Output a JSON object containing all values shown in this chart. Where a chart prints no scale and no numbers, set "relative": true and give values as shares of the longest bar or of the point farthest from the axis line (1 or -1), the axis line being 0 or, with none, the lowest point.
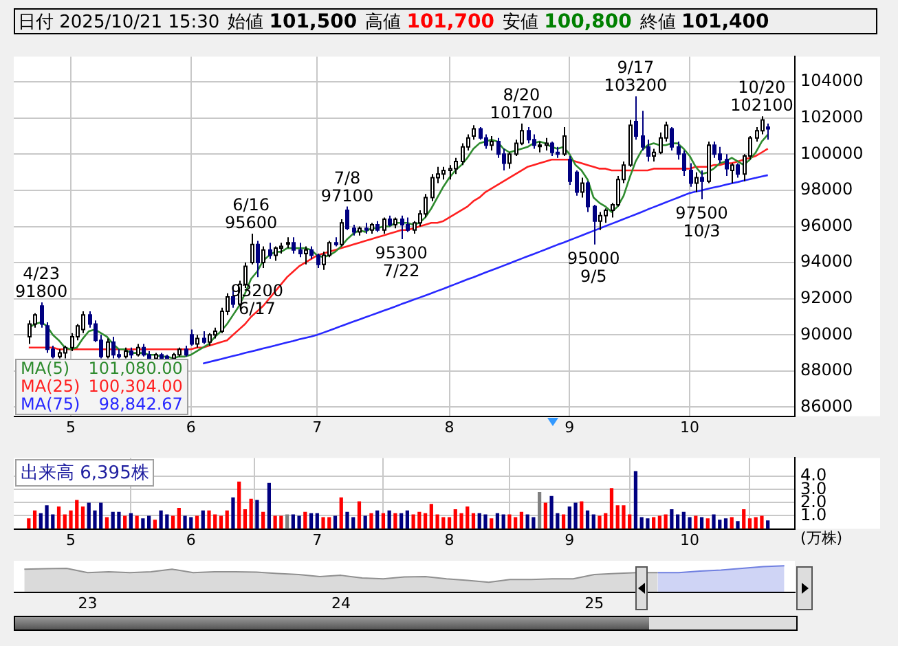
{
  "chart_data": [
    {
      "type": "candlestick",
      "title": "日付 2025/10/21 15:30",
      "annotations": [
        "始値 101,500",
        "高値 101,700",
        "安値 100,800",
        "終値 101,400",
        {
          "text": "4/23\n91800",
          "y": 91800
        },
        {
          "text": "6/16\n95600",
          "y": 95600
        },
        {
          "text": "93200\n6/17",
          "y": 93200
        },
        {
          "text": "7/8\n97100",
          "y": 97100
        },
        {
          "text": "95300\n7/22",
          "y": 95300
        },
        {
          "text": "8/20\n101700",
          "y": 101700
        },
        {
          "text": "95000\n9/5",
          "y": 95000
        },
        {
          "text": "9/17\n103200",
          "y": 103200
        },
        {
          "text": "97500\n10/3",
          "y": 97500
        },
        {
          "text": "10/20\n102100",
          "y": 102100
        }
      ],
      "categories": [
        null,
        null,
        null,
        null,
        null,
        null,
        null,
        "5",
        null,
        null,
        null,
        null,
        null,
        null,
        null,
        null,
        null,
        null,
        null,
        null,
        null,
        null,
        null,
        null,
        null,
        null,
        null,
        "6",
        null,
        null,
        null,
        null,
        null,
        null,
        null,
        null,
        null,
        null,
        null,
        null,
        null,
        null,
        null,
        null,
        null,
        null,
        null,
        null,
        "7",
        null,
        null,
        null,
        null,
        null,
        null,
        null,
        null,
        null,
        null,
        null,
        null,
        null,
        null,
        null,
        null,
        null,
        null,
        null,
        null,
        null,
        "8",
        null,
        null,
        null,
        null,
        null,
        null,
        null,
        null,
        null,
        null,
        null,
        null,
        null,
        null,
        null,
        null,
        null,
        null,
        null,
        "9",
        null,
        null,
        null,
        null,
        null,
        null,
        null,
        null,
        null,
        null,
        null,
        null,
        null,
        null,
        null,
        null,
        null,
        null,
        null,
        "10",
        null,
        null,
        null,
        null,
        null,
        null,
        null,
        null,
        null,
        null,
        null,
        null,
        null
      ],
      "ohlc": [
        [
          89900,
          90800,
          89500,
          90600
        ],
        [
          90600,
          91200,
          90400,
          91100
        ],
        [
          91600,
          91800,
          90400,
          90600
        ],
        [
          90500,
          90700,
          89000,
          89200
        ],
        [
          89200,
          89400,
          88700,
          88800
        ],
        [
          88800,
          89200,
          88700,
          89000
        ],
        [
          89000,
          89400,
          88700,
          89300
        ],
        [
          89300,
          90100,
          89100,
          89900
        ],
        [
          89900,
          90600,
          89700,
          90500
        ],
        [
          90300,
          91300,
          90100,
          91100
        ],
        [
          91100,
          91300,
          90400,
          90600
        ],
        [
          90600,
          90800,
          89600,
          89700
        ],
        [
          89700,
          90000,
          88700,
          88800
        ],
        [
          88800,
          89800,
          88700,
          89600
        ],
        [
          89600,
          89900,
          88700,
          88900
        ],
        [
          88900,
          89200,
          88700,
          88800
        ],
        [
          88800,
          89300,
          88700,
          89100
        ],
        [
          89100,
          89300,
          88700,
          88900
        ],
        [
          88900,
          89500,
          88800,
          89300
        ],
        [
          89300,
          89500,
          88800,
          88900
        ],
        [
          88900,
          89100,
          88600,
          88700
        ],
        [
          88700,
          89000,
          88600,
          88900
        ],
        [
          88900,
          89000,
          88600,
          88700
        ],
        [
          88800,
          88900,
          88600,
          88700
        ],
        [
          88700,
          89000,
          88600,
          88900
        ],
        [
          88900,
          89300,
          88800,
          89200
        ],
        [
          89200,
          89400,
          88800,
          88900
        ],
        [
          90000,
          90300,
          89400,
          89500
        ],
        [
          89500,
          90000,
          89300,
          89800
        ],
        [
          89800,
          90200,
          89500,
          89600
        ],
        [
          89600,
          90100,
          89400,
          90000
        ],
        [
          90000,
          90400,
          89800,
          90200
        ],
        [
          90200,
          91500,
          90100,
          91300
        ],
        [
          91300,
          92300,
          91100,
          92100
        ],
        [
          92100,
          92700,
          91500,
          91700
        ],
        [
          91700,
          93000,
          91600,
          92800
        ],
        [
          92800,
          94000,
          92600,
          93800
        ],
        [
          94000,
          95600,
          93900,
          95000
        ],
        [
          95000,
          95200,
          93200,
          94000
        ],
        [
          94000,
          94900,
          93700,
          94700
        ],
        [
          94700,
          95100,
          94200,
          94400
        ],
        [
          94400,
          94900,
          94100,
          94800
        ],
        [
          94800,
          95100,
          94500,
          94900
        ],
        [
          95100,
          95400,
          94800,
          95100
        ],
        [
          95100,
          95400,
          94500,
          94700
        ],
        [
          94700,
          95100,
          94300,
          94500
        ],
        [
          94500,
          94900,
          93900,
          94700
        ],
        [
          94700,
          94900,
          94200,
          94400
        ],
        [
          94400,
          94500,
          93700,
          93900
        ],
        [
          93900,
          94600,
          93600,
          94400
        ],
        [
          94400,
          95200,
          94300,
          95100
        ],
        [
          95100,
          95400,
          94900,
          95000
        ],
        [
          95000,
          96400,
          94900,
          96200
        ],
        [
          96900,
          97100,
          95800,
          95900
        ],
        [
          95900,
          96100,
          95500,
          95700
        ],
        [
          95700,
          96000,
          95500,
          95900
        ],
        [
          95900,
          96200,
          95600,
          95800
        ],
        [
          95800,
          96200,
          95600,
          96100
        ],
        [
          96100,
          96300,
          95700,
          95800
        ],
        [
          95800,
          96500,
          95600,
          96400
        ],
        [
          96400,
          96600,
          96000,
          96100
        ],
        [
          96100,
          96500,
          95900,
          96400
        ],
        [
          96400,
          96600,
          95300,
          96100
        ],
        [
          96100,
          96500,
          95700,
          95800
        ],
        [
          95800,
          96300,
          95600,
          96200
        ],
        [
          96200,
          96900,
          96000,
          96700
        ],
        [
          96700,
          97800,
          96500,
          97600
        ],
        [
          97600,
          98900,
          97400,
          98700
        ],
        [
          98700,
          99300,
          98400,
          98900
        ],
        [
          98900,
          99300,
          98600,
          99100
        ],
        [
          99100,
          99400,
          98600,
          99200
        ],
        [
          99200,
          99800,
          98900,
          99600
        ],
        [
          99600,
          100600,
          99400,
          100400
        ],
        [
          100400,
          101100,
          100200,
          100900
        ],
        [
          101000,
          101600,
          100800,
          101400
        ],
        [
          101400,
          101500,
          100800,
          100900
        ],
        [
          100900,
          101100,
          100300,
          100500
        ],
        [
          100500,
          101000,
          100200,
          100700
        ],
        [
          100700,
          100900,
          99800,
          100000
        ],
        [
          100000,
          100300,
          99100,
          99500
        ],
        [
          99500,
          100100,
          99200,
          100000
        ],
        [
          100000,
          100800,
          99900,
          100600
        ],
        [
          100600,
          101700,
          100500,
          101300
        ],
        [
          101300,
          101500,
          100600,
          100800
        ],
        [
          100800,
          101100,
          100300,
          100500
        ],
        [
          100500,
          100700,
          100100,
          100500
        ],
        [
          100500,
          100900,
          100200,
          100600
        ],
        [
          100600,
          100700,
          99900,
          100100
        ],
        [
          100100,
          100400,
          99800,
          100000
        ],
        [
          100000,
          101500,
          99900,
          101000
        ],
        [
          99700,
          99900,
          98300,
          98500
        ],
        [
          99000,
          99100,
          97700,
          97900
        ],
        [
          97900,
          98700,
          97600,
          98400
        ],
        [
          98400,
          98500,
          96800,
          97100
        ],
        [
          97100,
          97200,
          95000,
          96300
        ],
        [
          96300,
          96800,
          95800,
          96600
        ],
        [
          96600,
          97000,
          96200,
          96900
        ],
        [
          96900,
          97300,
          96500,
          97200
        ],
        [
          97200,
          98800,
          97100,
          98600
        ],
        [
          98600,
          99600,
          98400,
          99400
        ],
        [
          99400,
          101900,
          99300,
          101600
        ],
        [
          101800,
          103200,
          100800,
          101000
        ],
        [
          101000,
          102400,
          100200,
          100400
        ],
        [
          100400,
          100800,
          99600,
          99900
        ],
        [
          99900,
          100300,
          99600,
          100100
        ],
        [
          100100,
          101200,
          100000,
          100900
        ],
        [
          100900,
          101800,
          100700,
          101600
        ],
        [
          101400,
          101500,
          100200,
          100400
        ],
        [
          100400,
          100700,
          99700,
          100000
        ],
        [
          100000,
          100200,
          98800,
          99100
        ],
        [
          99100,
          99500,
          98200,
          98400
        ],
        [
          98400,
          99000,
          97900,
          98700
        ],
        [
          98700,
          99100,
          97500,
          98500
        ],
        [
          98500,
          100700,
          98400,
          100500
        ],
        [
          100500,
          100700,
          99800,
          100000
        ],
        [
          100000,
          100400,
          99500,
          99700
        ],
        [
          99700,
          100000,
          98800,
          99200
        ],
        [
          99100,
          99500,
          98400,
          99400
        ],
        [
          99400,
          99500,
          98700,
          98900
        ],
        [
          98900,
          100000,
          98500,
          99900
        ],
        [
          99900,
          101000,
          99700,
          100900
        ],
        [
          100900,
          101500,
          100700,
          101300
        ],
        [
          101300,
          102100,
          101100,
          101900
        ],
        [
          101500,
          101700,
          100800,
          101400
        ]
      ],
      "colors": [
        "#ffffff",
        "#ffffff",
        "#000080",
        "#000080",
        "#000080",
        "#ffffff",
        "#ffffff",
        "#ffffff",
        "#ffffff",
        "#ffffff",
        "#000080",
        "#000080",
        "#000080",
        "#ffffff",
        "#000080",
        "#000080",
        "#ffffff",
        "#000080",
        "#ffffff",
        "#000080",
        "#000080",
        "#ffffff",
        "#000080",
        "#000080",
        "#ffffff",
        "#ffffff",
        "#000080",
        "#000080",
        "#ffffff",
        "#000080",
        "#ffffff",
        "#ffffff",
        "#ffffff",
        "#ffffff",
        "#000080",
        "#ffffff",
        "#ffffff",
        "#ffffff",
        "#000080",
        "#ffffff",
        "#000080",
        "#ffffff",
        "#ffffff",
        "#ffffff",
        "#000080",
        "#000080",
        "#ffffff",
        "#000080",
        "#000080",
        "#ffffff",
        "#ffffff",
        "#000080",
        "#ffffff",
        "#000080",
        "#000080",
        "#ffffff",
        "#000080",
        "#ffffff",
        "#000080",
        "#ffffff",
        "#000080",
        "#ffffff",
        "#000080",
        "#000080",
        "#ffffff",
        "#ffffff",
        "#ffffff",
        "#ffffff",
        "#ffffff",
        "#ffffff",
        "#ffffff",
        "#ffffff",
        "#ffffff",
        "#ffffff",
        "#ffffff",
        "#000080",
        "#000080",
        "#ffffff",
        "#000080",
        "#000080",
        "#ffffff",
        "#ffffff",
        "#ffffff",
        "#000080",
        "#000080",
        "#ffffff",
        "#ffffff",
        "#000080",
        "#000080",
        "#ffffff",
        "#000080",
        "#000080",
        "#ffffff",
        "#000080",
        "#000080",
        "#ffffff",
        "#ffffff",
        "#ffffff",
        "#ffffff",
        "#ffffff",
        "#ffffff",
        "#000080",
        "#000080",
        "#000080",
        "#ffffff",
        "#ffffff",
        "#ffffff",
        "#000080",
        "#000080",
        "#000080",
        "#000080",
        "#ffffff",
        "#000080",
        "#ffffff",
        "#000080",
        "#000080",
        "#000080",
        "#ffffff",
        "#000080",
        "#ffffff",
        "#ffffff",
        "#ffffff",
        "#ffffff",
        "#000080"
      ],
      "series": [
        {
          "name": "MA(5) 101,080.00",
          "type": "line",
          "color": "#2e8b2e",
          "values": [
            90400,
            90600,
            90700,
            90500,
            90000,
            89700,
            89300,
            89200,
            89300,
            89800,
            90200,
            90300,
            90100,
            89900,
            89500,
            89200,
            89200,
            89000,
            89000,
            89000,
            88900,
            88900,
            88800,
            88800,
            88700,
            88800,
            88800,
            88900,
            89100,
            89300,
            89500,
            89900,
            90200,
            90600,
            91100,
            91600,
            92300,
            93100,
            93500,
            94100,
            94400,
            94600,
            94600,
            94800,
            94800,
            94800,
            94800,
            94700,
            94400,
            94300,
            94400,
            94600,
            94900,
            95300,
            95600,
            95800,
            95700,
            95900,
            95900,
            96000,
            96000,
            96200,
            96200,
            96200,
            96100,
            96200,
            96500,
            97000,
            97600,
            98200,
            98700,
            99100,
            99400,
            99800,
            100300,
            100600,
            100700,
            100800,
            100700,
            100300,
            100100,
            100200,
            100300,
            100400,
            100600,
            100700,
            100600,
            100400,
            100300,
            100400,
            100000,
            99400,
            99100,
            98600,
            97600,
            97300,
            97100,
            96800,
            97100,
            97700,
            98700,
            99600,
            100200,
            100500,
            100600,
            100500,
            100500,
            100600,
            100600,
            100300,
            99900,
            99300,
            98900,
            99000,
            99200,
            99500,
            99600,
            99800,
            99600,
            99400,
            99700,
            100100,
            100700,
            101080
          ]
        },
        {
          "name": "MA(25) 100,304.00",
          "type": "line",
          "color": "#ff2020",
          "values": [
            89300,
            89300,
            89300,
            89300,
            89300,
            89200,
            89200,
            89200,
            89200,
            89200,
            89200,
            89200,
            89200,
            89200,
            89200,
            89200,
            89200,
            89200,
            89200,
            89200,
            89200,
            89200,
            89200,
            89200,
            89200,
            89200,
            89200,
            89200,
            89300,
            89300,
            89400,
            89500,
            89600,
            89700,
            90000,
            90300,
            90600,
            91000,
            91300,
            91600,
            92000,
            92400,
            92800,
            93200,
            93500,
            93800,
            94000,
            94200,
            94400,
            94500,
            94600,
            94700,
            94800,
            94900,
            95000,
            95100,
            95200,
            95300,
            95400,
            95500,
            95600,
            95700,
            95800,
            95800,
            95900,
            96000,
            96100,
            96200,
            96200,
            96300,
            96500,
            96700,
            96900,
            97100,
            97400,
            97600,
            97900,
            98100,
            98300,
            98500,
            98700,
            98900,
            99100,
            99300,
            99400,
            99500,
            99600,
            99700,
            99700,
            99700,
            99700,
            99600,
            99500,
            99400,
            99300,
            99200,
            99200,
            99100,
            99100,
            99100,
            99100,
            99100,
            99100,
            99100,
            99200,
            99200,
            99200,
            99200,
            99200,
            99200,
            99200,
            99300,
            99300,
            99300,
            99400,
            99400,
            99500,
            99500,
            99600,
            99700,
            99800,
            99900,
            100100,
            100304
          ]
        },
        {
          "name": "MA(75) 98,842.67",
          "type": "line",
          "color": "#2828ff",
          "values": [
            null,
            null,
            null,
            null,
            null,
            null,
            null,
            null,
            null,
            null,
            null,
            null,
            null,
            null,
            null,
            null,
            null,
            null,
            null,
            null,
            null,
            null,
            null,
            null,
            null,
            null,
            null,
            null,
            null,
            88410,
            88500,
            88580,
            88660,
            88750,
            88830,
            88910,
            89000,
            89080,
            89160,
            89250,
            89330,
            89410,
            89500,
            89580,
            89660,
            89750,
            89830,
            89910,
            90000,
            90120,
            90240,
            90360,
            90490,
            90610,
            90730,
            90850,
            90970,
            91090,
            91210,
            91330,
            91450,
            91570,
            91700,
            91820,
            91940,
            92060,
            92180,
            92300,
            92430,
            92550,
            92680,
            92810,
            92940,
            93070,
            93190,
            93320,
            93450,
            93580,
            93700,
            93830,
            93960,
            94090,
            94220,
            94350,
            94470,
            94600,
            94730,
            94860,
            94990,
            95110,
            95240,
            95370,
            95500,
            95630,
            95760,
            95890,
            96020,
            96150,
            96280,
            96410,
            96540,
            96670,
            96800,
            96940,
            97070,
            97200,
            97330,
            97460,
            97590,
            97720,
            97850,
            97930,
            98000,
            98080,
            98160,
            98230,
            98310,
            98390,
            98460,
            98540,
            98620,
            98690,
            98770,
            98840
          ]
        }
      ],
      "ylim": [
        85500,
        105400
      ],
      "yticks": [
        86000,
        88000,
        90000,
        92000,
        94000,
        96000,
        98000,
        100000,
        102000,
        104000
      ],
      "grid": true,
      "legend": "bottom left"
    },
    {
      "type": "bar",
      "title": "出来高 6,395株",
      "ylabel": "(万株)",
      "categories": [
        null,
        null,
        null,
        null,
        null,
        null,
        null,
        "5",
        null,
        null,
        null,
        null,
        null,
        null,
        null,
        null,
        null,
        null,
        null,
        null,
        null,
        null,
        null,
        null,
        null,
        null,
        null,
        "6",
        null,
        null,
        null,
        null,
        null,
        null,
        null,
        null,
        null,
        null,
        null,
        null,
        null,
        null,
        null,
        null,
        null,
        null,
        null,
        null,
        "7",
        null,
        null,
        null,
        null,
        null,
        null,
        null,
        null,
        null,
        null,
        null,
        null,
        null,
        null,
        null,
        null,
        null,
        null,
        null,
        null,
        null,
        "8",
        null,
        null,
        null,
        null,
        null,
        null,
        null,
        null,
        null,
        null,
        null,
        null,
        null,
        null,
        null,
        null,
        null,
        null,
        null,
        "9",
        null,
        null,
        null,
        null,
        null,
        null,
        null,
        null,
        null,
        null,
        null,
        null,
        null,
        null,
        null,
        null,
        null,
        null,
        null,
        "10",
        null,
        null,
        null,
        null,
        null,
        null,
        null,
        null,
        null,
        null,
        null,
        null,
        null
      ],
      "values": [
        0.8,
        1.4,
        1.2,
        1.8,
        1.1,
        1.7,
        1.1,
        1.4,
        2.2,
        1.7,
        2.0,
        1.4,
        2.0,
        0.9,
        1.3,
        1.3,
        1.0,
        1.2,
        1.0,
        0.8,
        1.0,
        0.7,
        1.4,
        1.1,
        1.0,
        1.6,
        1.0,
        0.9,
        1.0,
        1.4,
        1.4,
        1.1,
        1.0,
        1.4,
        2.4,
        3.6,
        1.5,
        2.3,
        2.2,
        1.3,
        3.5,
        1.0,
        1.0,
        1.1,
        1.1,
        1.0,
        1.3,
        1.2,
        1.2,
        0.9,
        0.9,
        1.0,
        2.4,
        1.3,
        0.9,
        2.1,
        1.0,
        1.2,
        1.4,
        1.2,
        1.4,
        1.2,
        1.2,
        1.4,
        1.1,
        1.3,
        1.2,
        1.9,
        1.1,
        0.9,
        0.9,
        1.5,
        1.2,
        1.7,
        1.2,
        1.2,
        1.1,
        0.8,
        1.2,
        1.1,
        1.1,
        0.9,
        1.3,
        1.1,
        0.9,
        2.8,
        2.0,
        2.5,
        1.2,
        1.1,
        1.7,
        2.0,
        2.1,
        1.4,
        1.1,
        1.0,
        1.2,
        3.1,
        1.8,
        1.8,
        1.1,
        4.4,
        0.9,
        0.8,
        0.9,
        1.0,
        1.1,
        1.5,
        1.1,
        1.3,
        0.9,
        1.0,
        0.9,
        0.8,
        1.1,
        0.7,
        0.8,
        0.9,
        0.6,
        1.5,
        0.8,
        0.9,
        1.0,
        0.64
      ],
      "colors": [
        "#ff0000",
        "#ff0000",
        "#000080",
        "#000080",
        "#000080",
        "#ff0000",
        "#ff0000",
        "#ff0000",
        "#ff0000",
        "#ff0000",
        "#000080",
        "#000080",
        "#000080",
        "#ff0000",
        "#000080",
        "#000080",
        "#ff0000",
        "#000080",
        "#ff0000",
        "#000080",
        "#000080",
        "#ff0000",
        "#000080",
        "#000080",
        "#ff0000",
        "#ff0000",
        "#000080",
        "#000080",
        "#ff0000",
        "#000080",
        "#ff0000",
        "#ff0000",
        "#ff0000",
        "#ff0000",
        "#000080",
        "#ff0000",
        "#ff0000",
        "#ff0000",
        "#000080",
        "#ff0000",
        "#000080",
        "#ff0000",
        "#ff0000",
        "#808080",
        "#000080",
        "#000080",
        "#ff0000",
        "#000080",
        "#000080",
        "#ff0000",
        "#ff0000",
        "#000080",
        "#ff0000",
        "#000080",
        "#000080",
        "#ff0000",
        "#000080",
        "#ff0000",
        "#000080",
        "#ff0000",
        "#000080",
        "#ff0000",
        "#000080",
        "#000080",
        "#ff0000",
        "#ff0000",
        "#ff0000",
        "#ff0000",
        "#ff0000",
        "#ff0000",
        "#ff0000",
        "#ff0000",
        "#ff0000",
        "#ff0000",
        "#ff0000",
        "#000080",
        "#000080",
        "#ff0000",
        "#000080",
        "#000080",
        "#ff0000",
        "#ff0000",
        "#ff0000",
        "#000080",
        "#000080",
        "#808080",
        "#ff0000",
        "#000080",
        "#000080",
        "#ff0000",
        "#000080",
        "#000080",
        "#ff0000",
        "#000080",
        "#000080",
        "#ff0000",
        "#ff0000",
        "#ff0000",
        "#ff0000",
        "#ff0000",
        "#ff0000",
        "#000080",
        "#000080",
        "#000080",
        "#ff0000",
        "#ff0000",
        "#ff0000",
        "#000080",
        "#000080",
        "#000080",
        "#000080",
        "#ff0000",
        "#000080",
        "#ff0000",
        "#000080",
        "#000080",
        "#000080",
        "#ff0000",
        "#000080",
        "#ff0000",
        "#ff0000",
        "#ff0000",
        "#ff0000",
        "#000080"
      ],
      "ylim": [
        0,
        5.4
      ],
      "yticks": [
        {
          "value": 1,
          "label": "1.0"
        },
        {
          "value": 2,
          "label": "2.0"
        },
        {
          "value": 3,
          "label": "3.0"
        },
        {
          "value": 4,
          "label": "4.0"
        }
      ],
      "grid": true
    },
    {
      "type": "area",
      "relative": true,
      "tick_labels": "x",
      "categories": [
        null,
        null,
        null,
        "23",
        null,
        null,
        null,
        null,
        null,
        null,
        null,
        null,
        null,
        null,
        null,
        "24",
        null,
        null,
        null,
        null,
        null,
        null,
        null,
        null,
        null,
        null,
        null,
        "25",
        null,
        null,
        null,
        null,
        null,
        null,
        null,
        null,
        null
      ],
      "series": [
        {
          "color": "#909090",
          "values": [
            0.79,
            0.82,
            0.84,
            0.58,
            0.63,
            0.58,
            0.63,
            0.79,
            0.58,
            0.63,
            0.63,
            0.61,
            0.53,
            0.47,
            0.34,
            0.42,
            0.26,
            0.21,
            0.32,
            0.34,
            0.21,
            0.11,
            0,
            0.16,
            0.16,
            0.21,
            0.21,
            0.47,
            0.53,
            0.58,
            0.58,
            null,
            null,
            null,
            null,
            null,
            null
          ]
        },
        {
          "color": "#6f7fe0",
          "values": [
            null,
            null,
            null,
            null,
            null,
            null,
            null,
            null,
            null,
            null,
            null,
            null,
            null,
            null,
            null,
            null,
            null,
            null,
            null,
            null,
            null,
            null,
            null,
            null,
            null,
            null,
            null,
            null,
            null,
            null,
            0.58,
            0.58,
            0.68,
            0.74,
            0.84,
            0.95,
            1
          ]
        }
      ]
    }
  ]
}
